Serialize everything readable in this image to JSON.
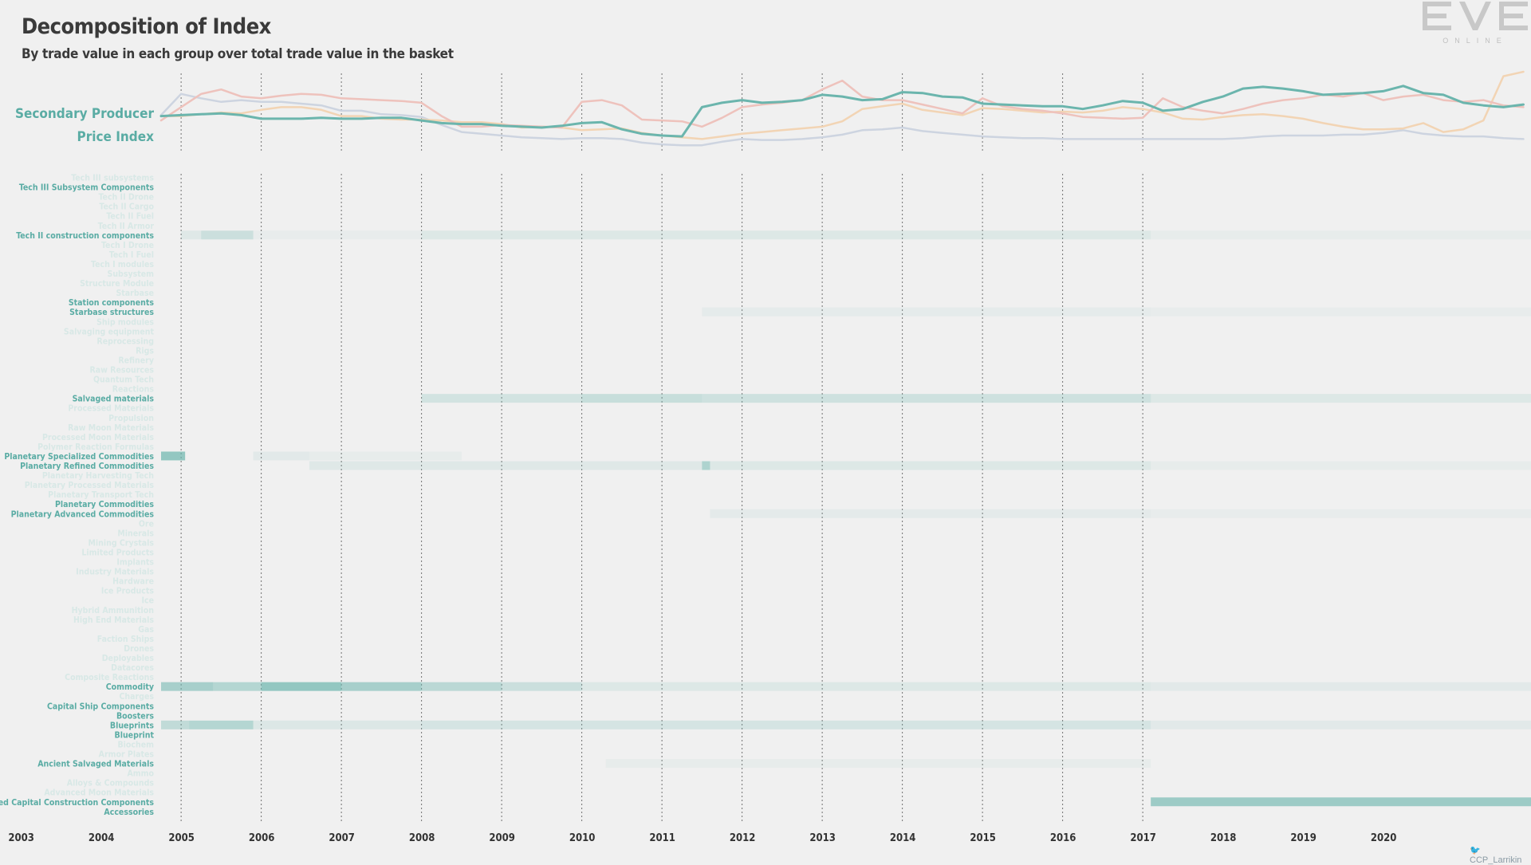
{
  "header": {
    "title": "Decomposition of Index",
    "subtitle": "By trade value in each group over total trade value in the basket"
  },
  "logo": {
    "name": "eve-online-logo",
    "mark": "EVE",
    "word": "ONLINE"
  },
  "credit": {
    "icon": "twitter-bird-icon",
    "text": "CCP_Larrikin"
  },
  "colors": {
    "accent": "#6bb5ad",
    "label": "#5aaca4",
    "label_faded": "#d8e8e6",
    "series_teal": "#6bb5ad",
    "series_red": "#eec2bc",
    "series_orange": "#f2d4b4",
    "series_blue": "#cdd4e0",
    "heat_base": "#6bb5ad",
    "grid": "#707070",
    "axis_text": "#333333"
  },
  "chart_data": [
    {
      "type": "line",
      "ylabel": "Secondary Producer\nPrice Index",
      "x": [
        2003.75,
        2004.0,
        2004.25,
        2004.5,
        2004.75,
        2005.0,
        2005.25,
        2005.5,
        2005.75,
        2006.0,
        2006.25,
        2006.5,
        2006.75,
        2007.0,
        2007.25,
        2007.5,
        2007.75,
        2008.0,
        2008.25,
        2008.5,
        2008.75,
        2009.0,
        2009.25,
        2009.5,
        2009.75,
        2010.0,
        2010.25,
        2010.5,
        2010.75,
        2011.0,
        2011.25,
        2011.5,
        2011.75,
        2012.0,
        2012.25,
        2012.5,
        2012.75,
        2013.0,
        2013.25,
        2013.5,
        2013.75,
        2014.0,
        2014.25,
        2014.5,
        2014.75,
        2015.0,
        2015.25,
        2015.5,
        2015.75,
        2016.0,
        2016.25,
        2016.5,
        2016.75,
        2017.0,
        2017.25,
        2017.5,
        2017.75,
        2018.0,
        2018.25,
        2018.5,
        2018.75,
        2019.0,
        2019.25,
        2019.5,
        2019.75,
        2020.0,
        2020.25,
        2020.5,
        2020.75
      ],
      "ylim": [
        60,
        150
      ],
      "series": [
        {
          "color": "teal",
          "values": [
            100,
            101,
            102,
            103,
            101,
            97,
            97,
            97,
            98,
            97,
            97,
            98,
            98,
            95,
            92,
            91,
            91,
            89,
            88,
            87,
            89,
            92,
            93,
            85,
            80,
            78,
            77,
            110,
            115,
            118,
            115,
            116,
            118,
            124,
            122,
            118,
            119,
            127,
            126,
            122,
            121,
            114,
            113,
            112,
            111,
            111,
            108,
            112,
            117,
            115,
            106,
            108,
            116,
            122,
            131,
            133,
            131,
            128,
            124,
            125,
            126,
            128,
            134,
            126,
            124,
            115,
            112,
            110,
            113
          ]
        },
        {
          "color": "red",
          "values": [
            95,
            110,
            125,
            130,
            122,
            120,
            123,
            125,
            124,
            120,
            119,
            118,
            117,
            115,
            100,
            88,
            88,
            90,
            89,
            88,
            87,
            116,
            118,
            112,
            96,
            95,
            94,
            88,
            98,
            110,
            113,
            115,
            118,
            130,
            140,
            122,
            118,
            118,
            113,
            108,
            103,
            120,
            111,
            108,
            106,
            103,
            99,
            98,
            97,
            98,
            120,
            110,
            106,
            103,
            108,
            114,
            118,
            120,
            124,
            122,
            126,
            118,
            122,
            124,
            118,
            116,
            118,
            112,
            110
          ]
        },
        {
          "color": "orange",
          "values": [
            100,
            100,
            102,
            104,
            103,
            107,
            110,
            110,
            107,
            100,
            100,
            97,
            96,
            96,
            95,
            93,
            93,
            91,
            87,
            88,
            87,
            84,
            85,
            86,
            81,
            78,
            76,
            74,
            77,
            80,
            82,
            84,
            86,
            88,
            94,
            108,
            111,
            114,
            107,
            104,
            101,
            109,
            108,
            106,
            104,
            105,
            104,
            106,
            110,
            108,
            104,
            97,
            96,
            99,
            101,
            102,
            100,
            97,
            92,
            88,
            85,
            85,
            86,
            92,
            82,
            85,
            95,
            145,
            150
          ]
        },
        {
          "color": "blue",
          "values": [
            101,
            125,
            120,
            116,
            118,
            116,
            116,
            114,
            112,
            106,
            106,
            102,
            101,
            99,
            90,
            82,
            80,
            78,
            76,
            75,
            74,
            75,
            75,
            74,
            70,
            68,
            67,
            67,
            71,
            74,
            73,
            73,
            74,
            76,
            79,
            84,
            85,
            87,
            83,
            81,
            79,
            77,
            76,
            75,
            75,
            74,
            74,
            74,
            74,
            74,
            74,
            74,
            74,
            74,
            75,
            77,
            78,
            78,
            78,
            79,
            79,
            81,
            84,
            80,
            78,
            77,
            77,
            75,
            74
          ]
        }
      ]
    },
    {
      "type": "heatmap",
      "x": [
        2003.75,
        2004.0,
        2004.25,
        2004.5,
        2004.75,
        2005.0,
        2005.25,
        2005.5,
        2005.75,
        2006.0,
        2006.25,
        2006.5,
        2006.75,
        2007.0,
        2007.25,
        2007.5,
        2007.75,
        2008.0,
        2008.25,
        2008.5,
        2008.75,
        2009.0,
        2009.25,
        2009.5,
        2009.75,
        2010.0,
        2010.25,
        2010.5,
        2010.75,
        2011.0,
        2011.25,
        2011.5,
        2011.75,
        2012.0,
        2012.25,
        2012.5,
        2012.75,
        2013.0,
        2013.25,
        2013.5,
        2013.75,
        2014.0,
        2014.25,
        2014.5,
        2014.75,
        2015.0,
        2015.25,
        2015.5,
        2015.75,
        2016.0,
        2016.25,
        2016.5,
        2016.75,
        2017.0,
        2017.25,
        2017.5,
        2017.75,
        2018.0,
        2018.25,
        2018.5,
        2018.75,
        2019.0,
        2019.25,
        2019.5,
        2019.75,
        2020.0,
        2020.25,
        2020.5,
        2020.75
      ],
      "x_ticks": [
        "2003",
        "2004",
        "2005",
        "2006",
        "2007",
        "2008",
        "2009",
        "2010",
        "2011",
        "2012",
        "2013",
        "2014",
        "2015",
        "2016",
        "2017",
        "2018",
        "2019",
        "2020"
      ],
      "y_labels": [
        "Tech III subsystems",
        "Tech III Subsystem Components",
        "Tech II Drone",
        "Tech II Cargo",
        "Tech II Fuel",
        "Tech II Armor",
        "Tech II construction components",
        "Tech I Drone",
        "Tech I Fuel",
        "Tech I modules",
        "Subsystem",
        "Structure Module",
        "Starbase",
        "Station components",
        "Starbase structures",
        "Ship modules",
        "Salvaging equipment",
        "Reprocessing",
        "Rigs",
        "Refinery",
        "Raw Resources",
        "Quantum Tech",
        "Reactions",
        "Salvaged materials",
        "Processed Materials",
        "Propulsion",
        "Raw Moon Materials",
        "Processed Moon Materials",
        "Polymer Reaction Formulas",
        "Planetary Specialized Commodities",
        "Planetary Refined Commodities",
        "Planetary Harvesting Tech",
        "Planetary Processed Materials",
        "Planetary Transport Tech",
        "Planetary Commodities",
        "Planetary Advanced Commodities",
        "Ore",
        "Minerals",
        "Mining Crystals",
        "Limited Products",
        "Implants",
        "Industry Materials",
        "Hardware",
        "Ice Products",
        "Ice",
        "Hybrid Ammunition",
        "High End Materials",
        "Gas",
        "Faction Ships",
        "Drones",
        "Deployables",
        "Datacores",
        "Composite Reactions",
        "Commodity",
        "Charges",
        "Capital Ship Components",
        "Boosters",
        "Blueprints",
        "Blueprint",
        "Biochem",
        "Armor Plates",
        "Ancient Salvaged Materials",
        "Ammo",
        "Alloys & Compounds",
        "Advanced Moon Materials",
        "Advanced Capital Construction Components",
        "Accessories"
      ],
      "highlighted": [
        "Tech III Subsystem Components",
        "Tech II construction components",
        "Station components",
        "Starbase structures",
        "Salvaged materials",
        "Planetary Specialized Commodities",
        "Planetary Refined Commodities",
        "Planetary Commodities",
        "Planetary Advanced Commodities",
        "Commodity",
        "Capital Ship Components",
        "Boosters",
        "Blueprints",
        "Blueprint",
        "Ancient Salvaged Materials",
        "Advanced Capital Construction Components",
        "Accessories"
      ],
      "rows": [
        {
          "label": "Tech II construction components",
          "ranges": [
            [
              2004.0,
              2004.25,
              0.12
            ],
            [
              2004.25,
              2004.9,
              0.28
            ],
            [
              2004.9,
              2007.0,
              0.05
            ],
            [
              2007.0,
              2016.1,
              0.14
            ],
            [
              2016.1,
              2020.9,
              0.07
            ]
          ]
        },
        {
          "label": "Starbase structures",
          "ranges": [
            [
              2010.5,
              2016.1,
              0.08
            ],
            [
              2016.1,
              2020.9,
              0.05
            ]
          ]
        },
        {
          "label": "Salvaged materials",
          "ranges": [
            [
              2007.0,
              2009.0,
              0.22
            ],
            [
              2009.0,
              2010.5,
              0.3
            ],
            [
              2010.5,
              2016.1,
              0.26
            ],
            [
              2016.1,
              2020.9,
              0.14
            ]
          ]
        },
        {
          "label": "Planetary Specialized Commodities",
          "ranges": [
            [
              2003.75,
              2004.05,
              0.7
            ],
            [
              2004.9,
              2005.6,
              0.1
            ],
            [
              2005.6,
              2007.5,
              0.06
            ]
          ]
        },
        {
          "label": "Planetary Refined Commodities",
          "ranges": [
            [
              2005.6,
              2010.5,
              0.12
            ],
            [
              2010.5,
              2010.6,
              0.5
            ],
            [
              2010.6,
              2016.1,
              0.14
            ],
            [
              2016.1,
              2020.9,
              0.07
            ]
          ]
        },
        {
          "label": "Planetary Advanced Commodities",
          "ranges": [
            [
              2010.6,
              2016.1,
              0.09
            ],
            [
              2016.1,
              2020.9,
              0.05
            ]
          ]
        },
        {
          "label": "Commodity",
          "ranges": [
            [
              2003.75,
              2004.4,
              0.55
            ],
            [
              2004.4,
              2005.0,
              0.45
            ],
            [
              2005.0,
              2006.0,
              0.7
            ],
            [
              2006.0,
              2007.0,
              0.55
            ],
            [
              2007.0,
              2008.0,
              0.4
            ],
            [
              2008.0,
              2009.0,
              0.28
            ],
            [
              2009.0,
              2016.1,
              0.14
            ],
            [
              2016.1,
              2020.9,
              0.1
            ]
          ]
        },
        {
          "label": "Blueprints",
          "ranges": [
            [
              2003.75,
              2004.1,
              0.35
            ],
            [
              2004.1,
              2004.9,
              0.45
            ],
            [
              2004.9,
              2007.0,
              0.15
            ],
            [
              2007.0,
              2016.1,
              0.2
            ],
            [
              2016.1,
              2020.9,
              0.1
            ]
          ]
        },
        {
          "label": "Ancient Salvaged Materials",
          "ranges": [
            [
              2009.3,
              2016.1,
              0.07
            ]
          ]
        },
        {
          "label": "Advanced Capital Construction Components",
          "ranges": [
            [
              2016.1,
              2020.9,
              0.62
            ]
          ]
        }
      ]
    }
  ]
}
